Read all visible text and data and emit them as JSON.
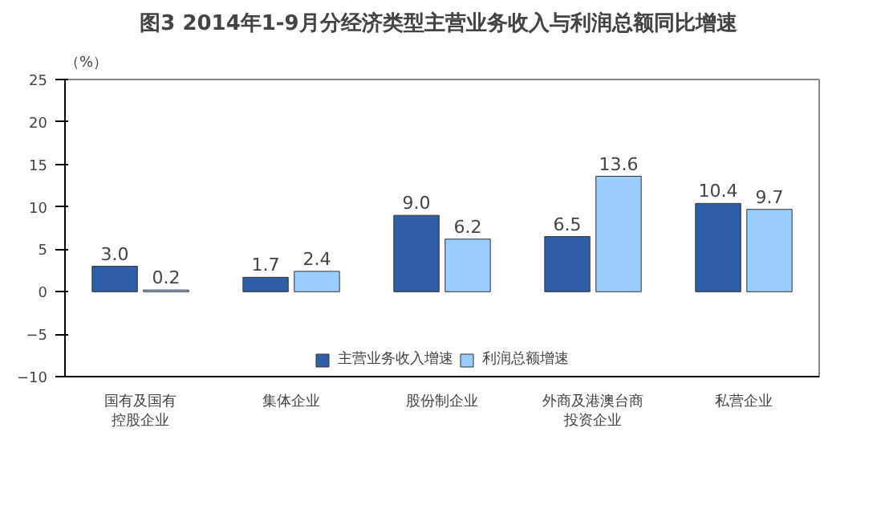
{
  "chart_data": {
    "type": "bar",
    "title": "图3  2014年1-9月分经济类型主营业务收入与利润总额同比增速",
    "ylabel": "（%）",
    "categories": [
      "国有及国有控股企业",
      "集体企业",
      "股份制企业",
      "外商及港澳台商投资企业",
      "私营企业"
    ],
    "series": [
      {
        "name": "主营业务收入增速",
        "color": "#2f5ea8",
        "values": [
          3.0,
          1.7,
          9.0,
          6.5,
          10.4
        ],
        "value_labels": [
          "3.0",
          "1.7",
          "9.0",
          "6.5",
          "10.4"
        ]
      },
      {
        "name": "利润总额增速",
        "color": "#99ccff",
        "values": [
          0.2,
          2.4,
          6.2,
          13.6,
          9.7
        ],
        "value_labels": [
          "0.2",
          "2.4",
          "6.2",
          "13.6",
          "9.7"
        ]
      }
    ],
    "ylim": [
      -10,
      25
    ],
    "yticks": [
      -10,
      -5,
      0,
      5,
      10,
      15,
      20,
      25
    ],
    "grid": false,
    "legend": "bottom"
  }
}
